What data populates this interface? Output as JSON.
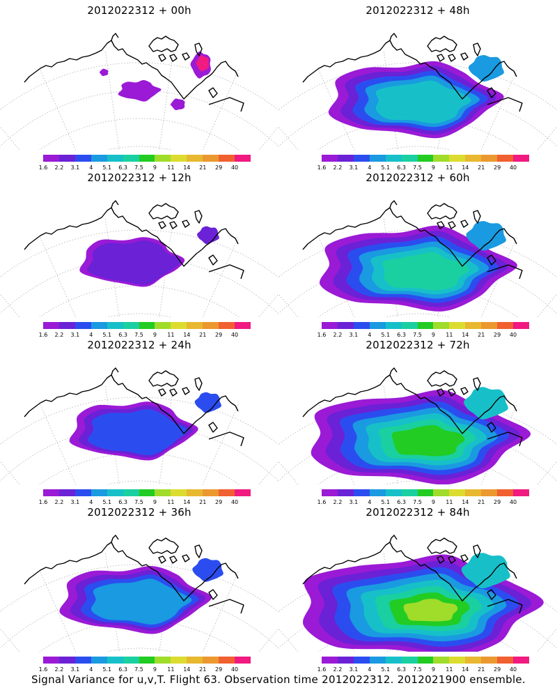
{
  "panels": [
    {
      "title": "2012022312 + 00h",
      "intensity": 0
    },
    {
      "title": "2012022312 + 48h",
      "intensity": 4
    },
    {
      "title": "2012022312 + 12h",
      "intensity": 1
    },
    {
      "title": "2012022312 + 60h",
      "intensity": 5
    },
    {
      "title": "2012022312 + 24h",
      "intensity": 2
    },
    {
      "title": "2012022312 + 72h",
      "intensity": 6
    },
    {
      "title": "2012022312 + 36h",
      "intensity": 3
    },
    {
      "title": "2012022312 + 84h",
      "intensity": 7
    }
  ],
  "legend": {
    "labels": [
      "1.6",
      "2.2",
      "3.1",
      "4",
      "5.1",
      "6.3",
      "7.5",
      "9",
      "11",
      "14",
      "21",
      "29",
      "40"
    ],
    "colors": [
      "#9a1ad6",
      "#6b21d6",
      "#2b4df0",
      "#1a9ae0",
      "#17c0c9",
      "#1ad0a0",
      "#22cc22",
      "#a0dc2a",
      "#dcdc30",
      "#e8b830",
      "#ec9830",
      "#f06030",
      "#f01a80"
    ]
  },
  "caption": "Signal Variance for u,v,T. Flight 63. Observation time 2012022312. 2012021900 ensemble."
}
